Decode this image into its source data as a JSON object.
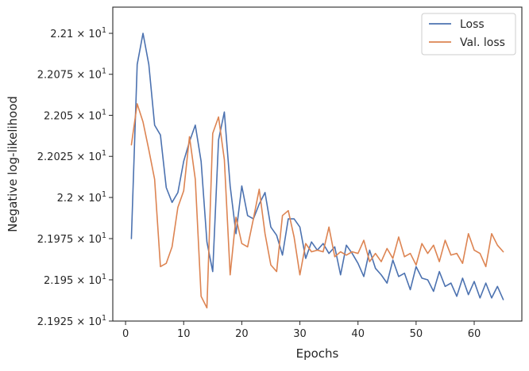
{
  "chart_data": {
    "type": "line",
    "title": "",
    "xlabel": "Epochs",
    "ylabel": "Negative log-likelihood",
    "xlim": [
      -2.2,
      68.2
    ],
    "ylim": [
      21.925,
      22.116
    ],
    "y_scale": "log",
    "grid": false,
    "legend_position": "top-right",
    "x_ticks": [
      0,
      10,
      20,
      30,
      40,
      50,
      60
    ],
    "x_tick_labels": [
      "0",
      "10",
      "20",
      "30",
      "40",
      "50",
      "60"
    ],
    "y_ticks": [
      21.925,
      21.95,
      21.975,
      22.0,
      22.025,
      22.05,
      22.075,
      22.1
    ],
    "y_tick_labels": [
      {
        "mantissa": "2.1925",
        "base": "10",
        "exp": "1"
      },
      {
        "mantissa": "2.195",
        "base": "10",
        "exp": "1"
      },
      {
        "mantissa": "2.1975",
        "base": "10",
        "exp": "1"
      },
      {
        "mantissa": "2.2",
        "base": "10",
        "exp": "1"
      },
      {
        "mantissa": "2.2025",
        "base": "10",
        "exp": "1"
      },
      {
        "mantissa": "2.205",
        "base": "10",
        "exp": "1"
      },
      {
        "mantissa": "2.2075",
        "base": "10",
        "exp": "1"
      },
      {
        "mantissa": "2.21",
        "base": "10",
        "exp": "1"
      }
    ],
    "x": [
      1,
      2,
      3,
      4,
      5,
      6,
      7,
      8,
      9,
      10,
      11,
      12,
      13,
      14,
      15,
      16,
      17,
      18,
      19,
      20,
      21,
      22,
      23,
      24,
      25,
      26,
      27,
      28,
      29,
      30,
      31,
      32,
      33,
      34,
      35,
      36,
      37,
      38,
      39,
      40,
      41,
      42,
      43,
      44,
      45,
      46,
      47,
      48,
      49,
      50,
      51,
      52,
      53,
      54,
      55,
      56,
      57,
      58,
      59,
      60,
      61,
      62,
      63,
      64,
      65
    ],
    "series": [
      {
        "name": "Loss",
        "color": "#4c72b0",
        "values": [
          21.975,
          22.081,
          22.1,
          22.081,
          22.044,
          22.038,
          22.006,
          21.997,
          22.003,
          22.022,
          22.034,
          22.044,
          22.022,
          21.973,
          21.955,
          22.035,
          22.052,
          22.007,
          21.978,
          22.007,
          21.989,
          21.987,
          21.996,
          22.003,
          21.982,
          21.977,
          21.965,
          21.987,
          21.987,
          21.982,
          21.963,
          21.973,
          21.968,
          21.972,
          21.966,
          21.97,
          21.953,
          21.971,
          21.966,
          21.96,
          21.952,
          21.968,
          21.957,
          21.953,
          21.948,
          21.962,
          21.952,
          21.954,
          21.944,
          21.958,
          21.951,
          21.95,
          21.943,
          21.955,
          21.946,
          21.948,
          21.94,
          21.951,
          21.941,
          21.949,
          21.939,
          21.948,
          21.939,
          21.946,
          21.938
        ]
      },
      {
        "name": "Val. loss",
        "color": "#dd8452",
        "values": [
          22.032,
          22.057,
          22.046,
          22.029,
          22.011,
          21.958,
          21.96,
          21.97,
          21.994,
          22.004,
          22.037,
          22.011,
          21.94,
          21.933,
          22.039,
          22.049,
          22.023,
          21.953,
          21.988,
          21.972,
          21.97,
          21.987,
          22.005,
          21.978,
          21.959,
          21.955,
          21.989,
          21.992,
          21.976,
          21.953,
          21.972,
          21.967,
          21.968,
          21.967,
          21.982,
          21.964,
          21.967,
          21.965,
          21.967,
          21.966,
          21.974,
          21.961,
          21.966,
          21.961,
          21.969,
          21.963,
          21.976,
          21.964,
          21.966,
          21.959,
          21.972,
          21.966,
          21.971,
          21.961,
          21.974,
          21.965,
          21.966,
          21.96,
          21.978,
          21.968,
          21.966,
          21.958,
          21.978,
          21.971,
          21.967
        ]
      }
    ]
  }
}
